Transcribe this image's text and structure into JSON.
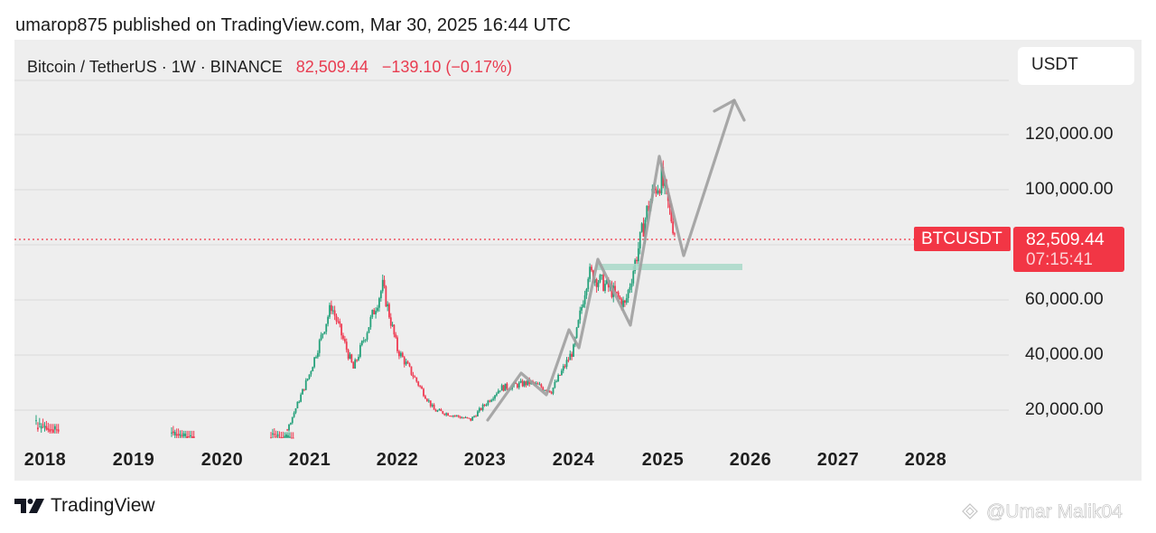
{
  "header": {
    "publish_line": "umarop875 published on TradingView.com, Mar 30, 2025 16:44 UTC"
  },
  "legend": {
    "symbol_line": "Bitcoin / TetherUS · 1W · BINANCE",
    "last_price": "82,509.44",
    "change": "−139.10 (−0.17%)"
  },
  "currency_button": {
    "label": "USDT"
  },
  "price_axis": {
    "labels": [
      "120,000.00",
      "100,000.00",
      "60,000.00",
      "40,000.00",
      "20,000.00"
    ]
  },
  "time_axis": {
    "labels": [
      "2018",
      "2019",
      "2020",
      "2021",
      "2022",
      "2023",
      "2024",
      "2025",
      "2026",
      "2027",
      "2028"
    ]
  },
  "price_marker": {
    "symbol": "BTCUSDT",
    "price": "82,509.44",
    "countdown": "07:15:41"
  },
  "footer": {
    "brand": "TradingView",
    "watermark": "@Umar Malik04"
  },
  "colors": {
    "up": "#26a17b",
    "down": "#ef3b52",
    "badge": "#f23645",
    "panel_bg": "#eeeeee",
    "drawing": "#9e9e9e",
    "support_zone": "#a8d8c8"
  },
  "chart_data": {
    "type": "candlestick",
    "title": "Bitcoin / TetherUS · 1W · BINANCE",
    "xlabel": "",
    "ylabel": "USDT",
    "ylim": [
      10000,
      135000
    ],
    "grid": true,
    "y_ticks": [
      20000,
      40000,
      60000,
      80000,
      100000,
      120000
    ],
    "x_ticks": [
      "2018",
      "2019",
      "2020",
      "2021",
      "2022",
      "2023",
      "2024",
      "2025",
      "2026",
      "2027",
      "2028"
    ],
    "last_price": 82509.44,
    "change": -139.1,
    "change_pct": -0.17,
    "approx_closes": {
      "x": [
        "2020-10",
        "2021-01",
        "2021-04",
        "2021-07",
        "2021-11",
        "2022-01",
        "2022-06",
        "2022-11",
        "2023-03",
        "2023-07",
        "2023-10",
        "2024-01",
        "2024-03",
        "2024-06",
        "2024-08",
        "2024-11",
        "2024-12",
        "2025-01",
        "2025-03"
      ],
      "y": [
        13000,
        33000,
        58000,
        35000,
        65000,
        42000,
        20000,
        16500,
        28000,
        30000,
        27000,
        42000,
        70000,
        64000,
        58000,
        92000,
        100000,
        104000,
        82509
      ]
    },
    "annotations": [
      {
        "type": "polyline_arrow",
        "points_price": [
          [
            "2023-01",
            17000
          ],
          [
            "2023-05",
            31000
          ],
          [
            "2023-09",
            26000
          ],
          [
            "2024-03",
            49000
          ],
          [
            "2024-04",
            43000
          ],
          [
            "2024-06",
            74000
          ],
          [
            "2024-09",
            51000
          ],
          [
            "2024-12",
            112000
          ],
          [
            "2025-03",
            76000
          ],
          [
            "2025-11",
            132000
          ]
        ],
        "color": "#9e9e9e"
      },
      {
        "type": "horizontal_zone",
        "price": 72000,
        "from": "2024-04",
        "to": "2025-11",
        "color": "#a8d8c8"
      },
      {
        "type": "price_line",
        "price": 82509.44,
        "style": "dotted",
        "color": "#f23645"
      }
    ]
  }
}
